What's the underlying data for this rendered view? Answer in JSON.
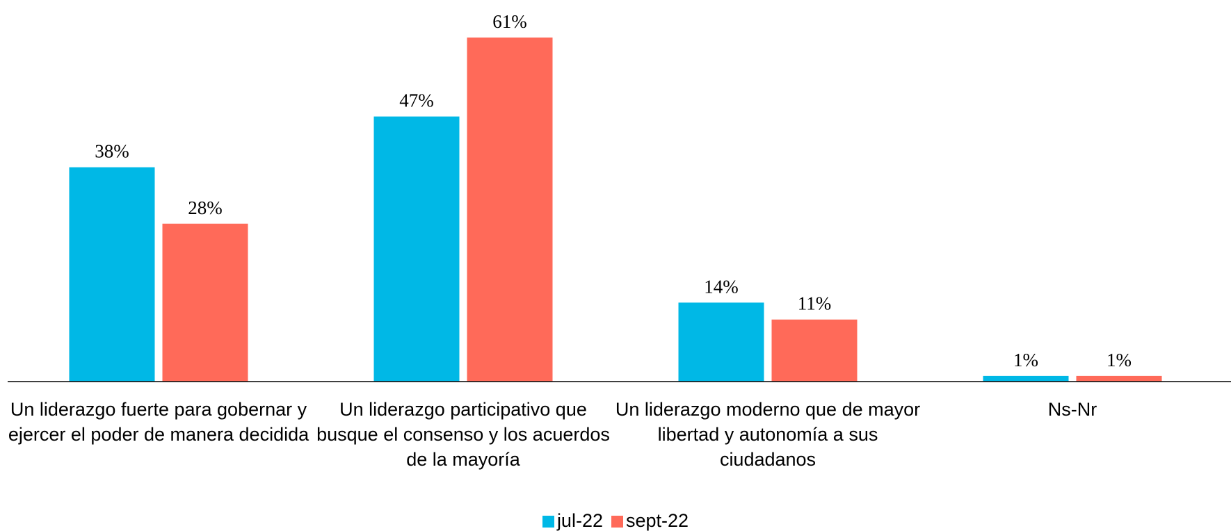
{
  "chart_data": {
    "type": "bar",
    "categories": [
      "Un liderazgo fuerte para gobernar y ejercer el poder de manera decidida",
      "Un liderazgo participativo que busque el consenso y los acuerdos de la mayoría",
      "Un liderazgo moderno que de mayor libertad y autonomía a sus ciudadanos",
      "Ns-Nr"
    ],
    "series": [
      {
        "name": "jul-22",
        "color": "#00b8e6",
        "values": [
          38,
          47,
          14,
          1
        ],
        "value_labels": [
          "38%",
          "47%",
          "14%",
          "1%"
        ]
      },
      {
        "name": "sept-22",
        "color": "#ff6a59",
        "values": [
          28,
          61,
          11,
          1
        ],
        "value_labels": [
          "28%",
          "61%",
          "11%",
          "1%"
        ]
      }
    ]
  }
}
